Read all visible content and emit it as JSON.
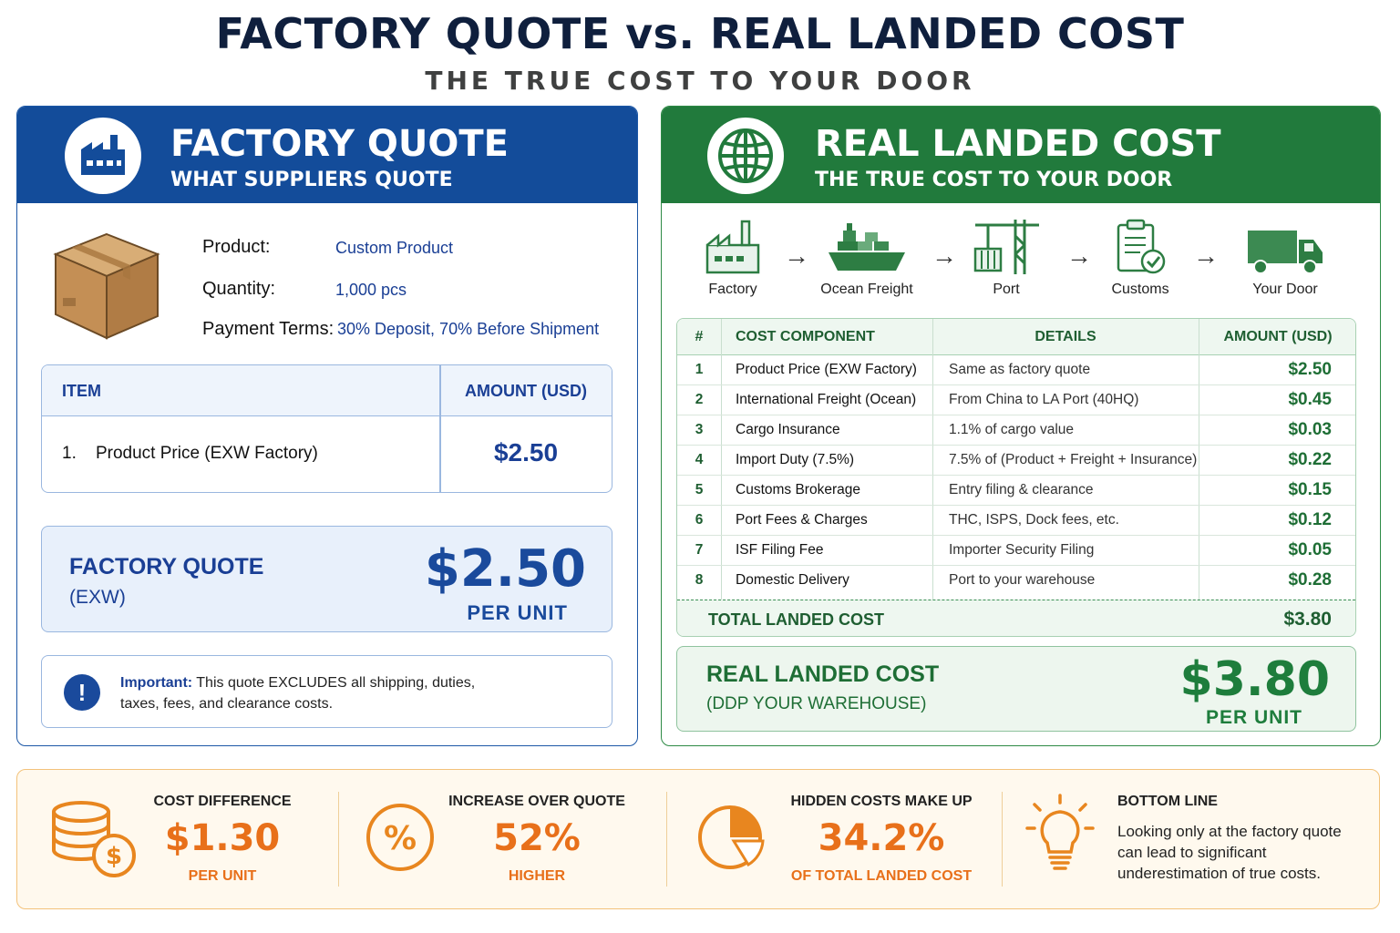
{
  "title": "FACTORY QUOTE vs. REAL LANDED COST",
  "subtitle": "THE TRUE COST TO YOUR DOOR",
  "left": {
    "heading": "FACTORY QUOTE",
    "subheading": "WHAT SUPPLIERS QUOTE",
    "icon": "factory-icon",
    "product_label": "Product:",
    "product_value": "Custom Product",
    "quantity_label": "Quantity:",
    "quantity_value": "1,000 pcs",
    "terms_label": "Payment Terms:",
    "terms_value": "30% Deposit, 70% Before Shipment",
    "table": {
      "col_item": "ITEM",
      "col_amount": "AMOUNT (USD)",
      "rows": [
        {
          "item": "1.    Product Price (EXW Factory)",
          "amount": "$2.50"
        }
      ]
    },
    "summary_label": "FACTORY QUOTE",
    "summary_sub": "(EXW)",
    "summary_amount": "$2.50",
    "summary_per": "PER UNIT",
    "note_bold": "Important:",
    "note_text": "This quote EXCLUDES all shipping, duties, taxes, fees, and clearance costs."
  },
  "right": {
    "heading": "REAL LANDED COST",
    "subheading": "THE TRUE COST TO YOUR DOOR",
    "icon": "globe-icon",
    "flow": [
      {
        "label": "Factory",
        "icon": "factory-icon"
      },
      {
        "label": "Ocean Freight",
        "icon": "ship-icon"
      },
      {
        "label": "Port",
        "icon": "crane-icon"
      },
      {
        "label": "Customs",
        "icon": "clipboard-check-icon"
      },
      {
        "label": "Your Door",
        "icon": "truck-icon"
      }
    ],
    "table": {
      "col_num": "#",
      "col_component": "COST COMPONENT",
      "col_details": "DETAILS",
      "col_amount": "AMOUNT (USD)",
      "rows": [
        {
          "num": "1",
          "component": "Product Price (EXW Factory)",
          "details": "Same as factory quote",
          "amount": "$2.50"
        },
        {
          "num": "2",
          "component": "International Freight (Ocean)",
          "details": "From China to LA Port (40HQ)",
          "amount": "$0.45"
        },
        {
          "num": "3",
          "component": "Cargo Insurance",
          "details": "1.1% of cargo value",
          "amount": "$0.03"
        },
        {
          "num": "4",
          "component": "Import Duty (7.5%)",
          "details": "7.5% of (Product + Freight + Insurance)",
          "amount": "$0.22"
        },
        {
          "num": "5",
          "component": "Customs Brokerage",
          "details": "Entry filing & clearance",
          "amount": "$0.15"
        },
        {
          "num": "6",
          "component": "Port Fees & Charges",
          "details": "THC, ISPS, Dock fees, etc.",
          "amount": "$0.12"
        },
        {
          "num": "7",
          "component": "ISF Filing Fee",
          "details": "Importer Security Filing",
          "amount": "$0.05"
        },
        {
          "num": "8",
          "component": "Domestic Delivery",
          "details": "Port to your warehouse",
          "amount": "$0.28"
        }
      ],
      "total_label": "TOTAL LANDED COST",
      "total_value": "$3.80"
    },
    "summary_label": "REAL LANDED COST",
    "summary_sub": "(DDP YOUR WAREHOUSE)",
    "summary_amount": "$3.80",
    "summary_per": "PER UNIT"
  },
  "stats": [
    {
      "heading": "COST DIFFERENCE",
      "value": "$1.30",
      "sub": "PER UNIT",
      "icon": "coins-dollar-icon"
    },
    {
      "heading": "INCREASE OVER QUOTE",
      "value": "52%",
      "sub": "HIGHER",
      "icon": "percent-icon"
    },
    {
      "heading": "HIDDEN COSTS MAKE UP",
      "value": "34.2%",
      "sub": "OF TOTAL LANDED COST",
      "icon": "pie-chart-icon"
    },
    {
      "heading": "BOTTOM LINE",
      "text": "Looking only at the factory quote can lead to significant underestimation of true costs.",
      "icon": "lightbulb-icon"
    }
  ],
  "colors": {
    "blue": "#134c9a",
    "green": "#217a3c",
    "orange": "#e8701a",
    "navy": "#0f1f3d"
  }
}
